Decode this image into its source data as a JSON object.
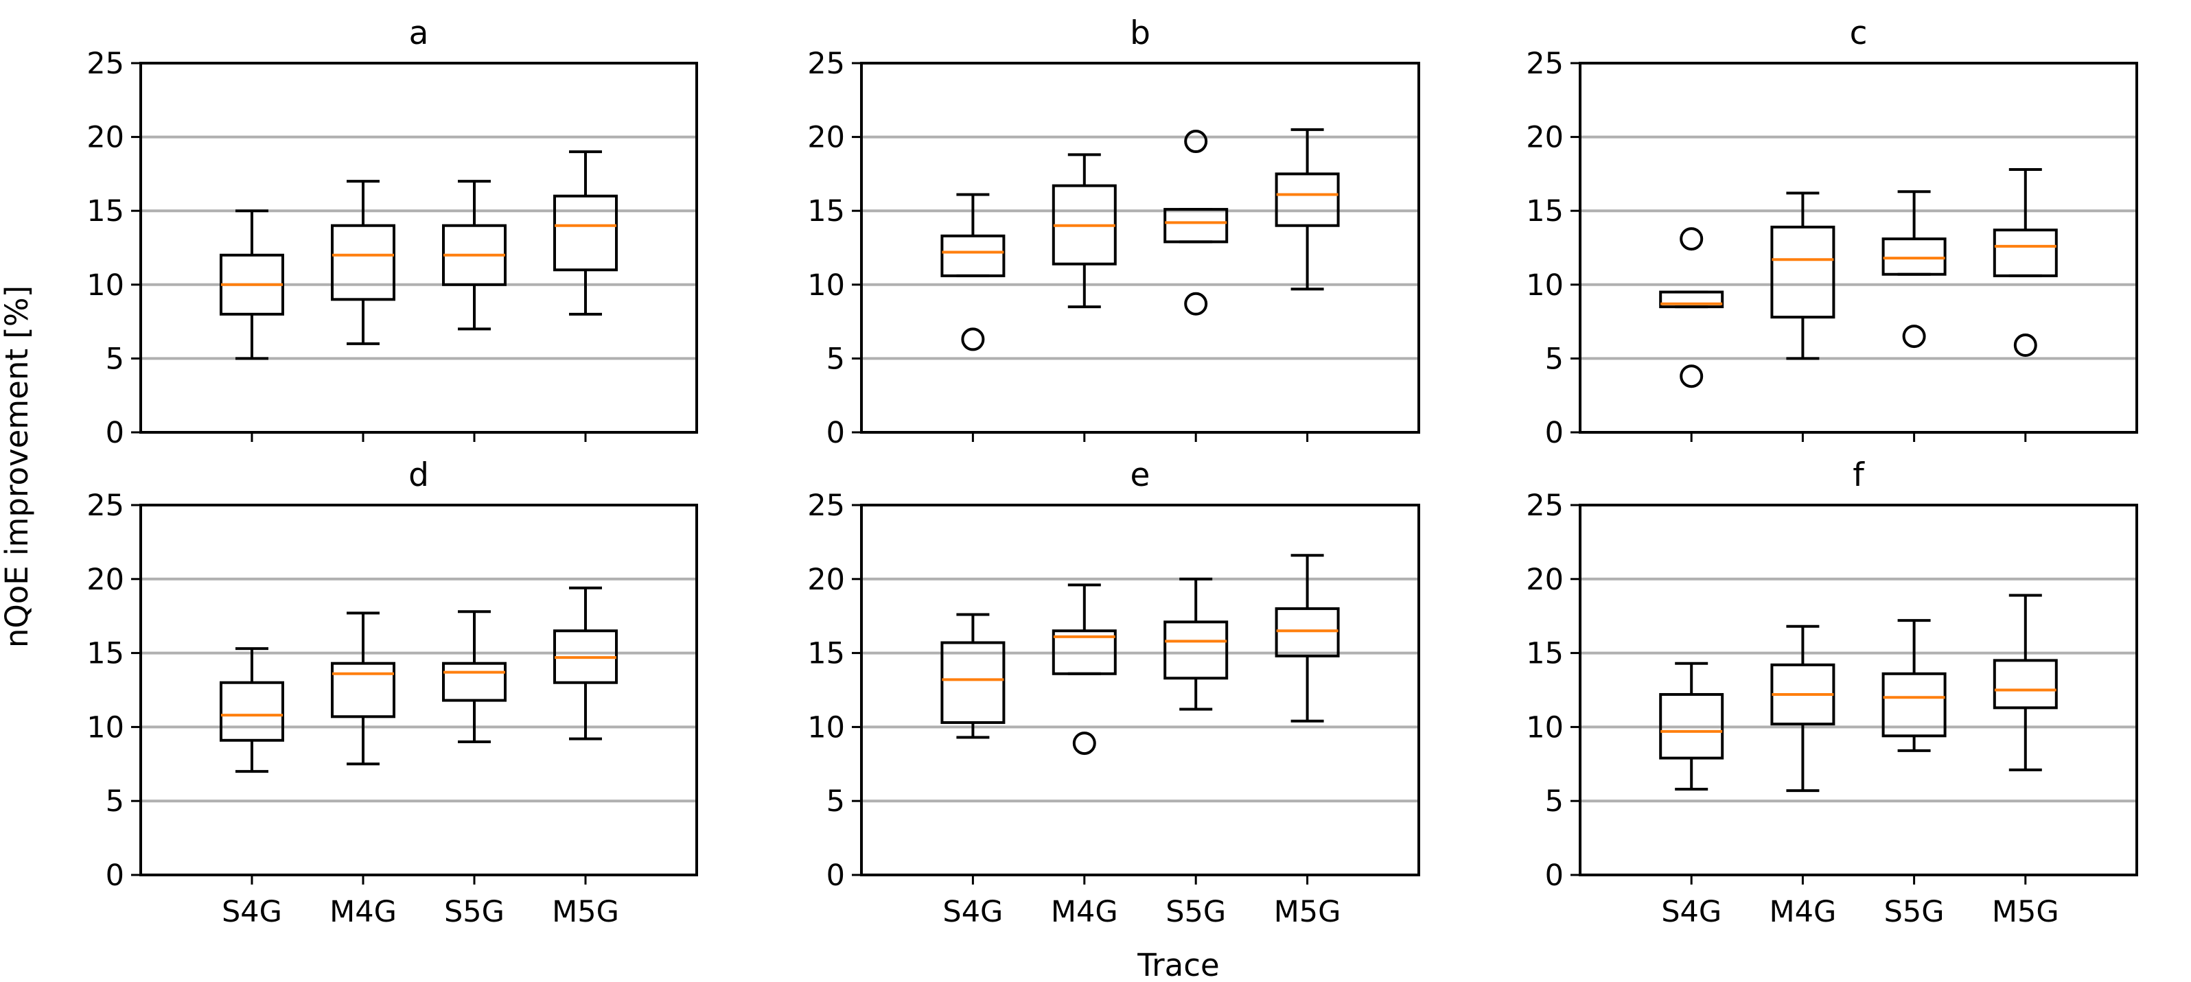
{
  "chart_data": {
    "type": "box",
    "ylabel": "nQoE improvement [%]",
    "xlabel": "Trace",
    "ylim": [
      0,
      25
    ],
    "yticks": [
      "0",
      "5",
      "10",
      "15",
      "20",
      "25"
    ],
    "categories": [
      "S4G",
      "M4G",
      "S5G",
      "M5G"
    ],
    "grid": "horizontal",
    "panels": [
      {
        "title": "a",
        "boxes": [
          {
            "category": "S4G",
            "whislo": 5.0,
            "q1": 8.0,
            "med": 10.0,
            "q3": 12.0,
            "whishi": 15.0,
            "fliers": []
          },
          {
            "category": "M4G",
            "whislo": 6.0,
            "q1": 9.0,
            "med": 12.0,
            "q3": 14.0,
            "whishi": 17.0,
            "fliers": []
          },
          {
            "category": "S5G",
            "whislo": 7.0,
            "q1": 10.0,
            "med": 12.0,
            "q3": 14.0,
            "whishi": 17.0,
            "fliers": []
          },
          {
            "category": "M5G",
            "whislo": 8.0,
            "q1": 11.0,
            "med": 14.0,
            "q3": 16.0,
            "whishi": 19.0,
            "fliers": []
          }
        ]
      },
      {
        "title": "b",
        "boxes": [
          {
            "category": "S4G",
            "whislo": 10.6,
            "q1": 10.6,
            "med": 12.2,
            "q3": 13.3,
            "whishi": 16.1,
            "fliers": [
              6.3
            ]
          },
          {
            "category": "M4G",
            "whislo": 8.5,
            "q1": 11.4,
            "med": 14.0,
            "q3": 16.7,
            "whishi": 18.8,
            "fliers": []
          },
          {
            "category": "S5G",
            "whislo": 12.9,
            "q1": 12.9,
            "med": 14.2,
            "q3": 15.1,
            "whishi": 15.1,
            "fliers": [
              19.7,
              8.7
            ]
          },
          {
            "category": "M5G",
            "whislo": 9.7,
            "q1": 14.0,
            "med": 16.1,
            "q3": 17.5,
            "whishi": 20.5,
            "fliers": []
          }
        ]
      },
      {
        "title": "c",
        "boxes": [
          {
            "category": "S4G",
            "whislo": 8.5,
            "q1": 8.5,
            "med": 8.7,
            "q3": 9.5,
            "whishi": 9.5,
            "fliers": [
              13.1,
              3.8
            ]
          },
          {
            "category": "M4G",
            "whislo": 5.0,
            "q1": 7.8,
            "med": 11.7,
            "q3": 13.9,
            "whishi": 16.2,
            "fliers": []
          },
          {
            "category": "S5G",
            "whislo": 10.7,
            "q1": 10.7,
            "med": 11.8,
            "q3": 13.1,
            "whishi": 16.3,
            "fliers": [
              6.5
            ]
          },
          {
            "category": "M5G",
            "whislo": 10.6,
            "q1": 10.6,
            "med": 12.6,
            "q3": 13.7,
            "whishi": 17.8,
            "fliers": [
              5.9
            ]
          }
        ]
      },
      {
        "title": "d",
        "boxes": [
          {
            "category": "S4G",
            "whislo": 7.0,
            "q1": 9.1,
            "med": 10.8,
            "q3": 13.0,
            "whishi": 15.3,
            "fliers": []
          },
          {
            "category": "M4G",
            "whislo": 7.5,
            "q1": 10.7,
            "med": 13.6,
            "q3": 14.3,
            "whishi": 17.7,
            "fliers": []
          },
          {
            "category": "S5G",
            "whislo": 9.0,
            "q1": 11.8,
            "med": 13.7,
            "q3": 14.3,
            "whishi": 17.8,
            "fliers": []
          },
          {
            "category": "M5G",
            "whislo": 9.2,
            "q1": 13.0,
            "med": 14.7,
            "q3": 16.5,
            "whishi": 19.4,
            "fliers": []
          }
        ]
      },
      {
        "title": "e",
        "boxes": [
          {
            "category": "S4G",
            "whislo": 9.3,
            "q1": 10.3,
            "med": 13.2,
            "q3": 15.7,
            "whishi": 17.6,
            "fliers": []
          },
          {
            "category": "M4G",
            "whislo": 13.6,
            "q1": 13.6,
            "med": 16.1,
            "q3": 16.5,
            "whishi": 19.6,
            "fliers": [
              8.9
            ]
          },
          {
            "category": "S5G",
            "whislo": 11.2,
            "q1": 13.3,
            "med": 15.8,
            "q3": 17.1,
            "whishi": 20.0,
            "fliers": []
          },
          {
            "category": "M5G",
            "whislo": 10.4,
            "q1": 14.8,
            "med": 16.5,
            "q3": 18.0,
            "whishi": 21.6,
            "fliers": []
          }
        ]
      },
      {
        "title": "f",
        "boxes": [
          {
            "category": "S4G",
            "whislo": 5.8,
            "q1": 7.9,
            "med": 9.7,
            "q3": 12.2,
            "whishi": 14.3,
            "fliers": []
          },
          {
            "category": "M4G",
            "whislo": 5.7,
            "q1": 10.2,
            "med": 12.2,
            "q3": 14.2,
            "whishi": 16.8,
            "fliers": []
          },
          {
            "category": "S5G",
            "whislo": 8.4,
            "q1": 9.4,
            "med": 12.0,
            "q3": 13.6,
            "whishi": 17.2,
            "fliers": []
          },
          {
            "category": "M5G",
            "whislo": 7.1,
            "q1": 11.3,
            "med": 12.5,
            "q3": 14.5,
            "whishi": 18.9,
            "fliers": []
          }
        ]
      }
    ],
    "colors": {
      "box": "#000000",
      "median": "#ff7f0e",
      "grid": "#b0b0b0"
    }
  }
}
